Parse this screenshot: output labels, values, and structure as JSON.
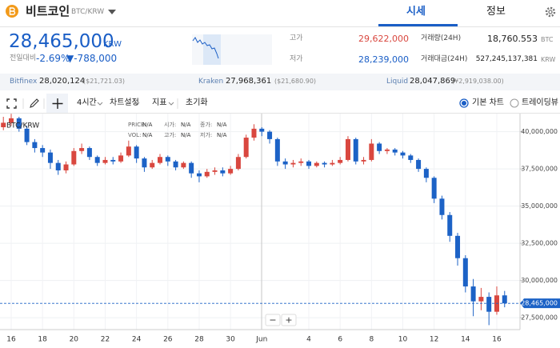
{
  "header": {
    "coin": "비트코인",
    "pair": "BTC/KRW",
    "tabs": [
      "시세",
      "정보"
    ]
  },
  "price": {
    "current": "28,465,000",
    "unit": "KRW",
    "change_label": "전일대비",
    "change_rate": "-2.69%",
    "change_amount": "▼-788,000",
    "high_label": "고가",
    "high": "29,622,000",
    "low_label": "저가",
    "low": "28,239,000",
    "volume_label": "거래량(24H)",
    "volume": "18,760.553",
    "volume_unit": "BTC",
    "amount_label": "거래대금(24H)",
    "amount": "527,245,137,381",
    "amount_unit": "KRW"
  },
  "exchanges": [
    {
      "name": "Bitfinex",
      "price": "28,020,124",
      "converted": "($21,721.03)"
    },
    {
      "name": "Kraken",
      "price": "27,968,361",
      "converted": "($21,680.90)"
    },
    {
      "name": "Liquid",
      "price": "28,047,869",
      "converted": "(¥2,919,038.00)"
    }
  ],
  "toolbar": {
    "interval": "4시간",
    "settings": "차트설정",
    "indicators": "지표",
    "reset": "초기화",
    "chart_options": [
      "기본 차트",
      "트레이딩뷰"
    ]
  },
  "chart_data": {
    "type": "candlestick",
    "symbol": "BTC/KRW",
    "legend": [
      [
        "PRICE:",
        "N/A",
        "시가:",
        "N/A",
        "종가:",
        "N/A"
      ],
      [
        "VOL:",
        "N/A",
        "고가:",
        "N/A",
        "저가:",
        "N/A"
      ]
    ],
    "categories": [
      null,
      "16",
      null,
      null,
      null,
      "18",
      null,
      null,
      null,
      "20",
      null,
      null,
      null,
      "22",
      null,
      null,
      null,
      "24",
      null,
      null,
      null,
      "26",
      null,
      null,
      null,
      "28",
      null,
      null,
      null,
      "30",
      null,
      null,
      null,
      "Jun",
      null,
      null,
      null,
      null,
      null,
      "4",
      null,
      null,
      null,
      "6",
      null,
      null,
      null,
      "8",
      null,
      null,
      null,
      "10",
      null,
      null,
      null,
      "12",
      null,
      null,
      null,
      "14",
      null,
      null,
      null,
      "16",
      null
    ],
    "open": [
      40300000,
      40600000,
      40900000,
      40200000,
      39300000,
      38900000,
      38600000,
      37900000,
      37400000,
      37800000,
      38700000,
      38900000,
      38300000,
      37900000,
      38100000,
      38000000,
      38400000,
      39000000,
      38200000,
      37600000,
      37900000,
      38300000,
      38000000,
      37600000,
      37900000,
      37200000,
      37000000,
      37300000,
      37400000,
      37200000,
      37500000,
      38300000,
      39600000,
      40200000,
      40000000,
      39500000,
      38000000,
      37800000,
      37900000,
      38000000,
      37700000,
      37900000,
      37800000,
      37900000,
      38100000,
      39500000,
      38000000,
      38100000,
      39200000,
      38700000,
      38800000,
      38600000,
      38400000,
      38100000,
      37500000,
      36900000,
      35500000,
      34400000,
      33000000,
      31500000,
      29600000,
      28600000,
      28900000,
      27900000,
      29000000
    ],
    "high": [
      41000000,
      41200000,
      41000000,
      40400000,
      39500000,
      39100000,
      38800000,
      38100000,
      38000000,
      38900000,
      39200000,
      39000000,
      38400000,
      38300000,
      38300000,
      38600000,
      39400000,
      39100000,
      38300000,
      38100000,
      38500000,
      38400000,
      38100000,
      38000000,
      38000000,
      37400000,
      37500000,
      37600000,
      37600000,
      37700000,
      38500000,
      39800000,
      40500000,
      40300000,
      40100000,
      39600000,
      38200000,
      38100000,
      38200000,
      38100000,
      38000000,
      38000000,
      38100000,
      38300000,
      39700000,
      39600000,
      38300000,
      39500000,
      39300000,
      38900000,
      38900000,
      38700000,
      38500000,
      38200000,
      37600000,
      37000000,
      35700000,
      34600000,
      33200000,
      31700000,
      30100000,
      29500000,
      29200000,
      29600000,
      29300000
    ],
    "low": [
      40100000,
      40400000,
      40000000,
      39100000,
      38600000,
      38300000,
      37500000,
      37100000,
      37200000,
      37700000,
      38500000,
      38100000,
      37700000,
      37800000,
      37800000,
      37900000,
      38300000,
      37900000,
      37300000,
      37500000,
      37800000,
      37700000,
      37400000,
      37500000,
      36900000,
      36600000,
      36900000,
      37100000,
      37000000,
      37100000,
      37400000,
      38200000,
      39400000,
      39700000,
      39200000,
      37700000,
      37500000,
      37600000,
      37700000,
      37500000,
      37600000,
      37600000,
      37700000,
      37800000,
      38000000,
      37800000,
      37800000,
      38000000,
      38500000,
      38500000,
      38400000,
      38200000,
      37900000,
      37300000,
      36600000,
      35200000,
      34100000,
      32600000,
      31000000,
      29200000,
      27600000,
      28000000,
      27000000,
      27700000,
      28200000
    ],
    "close": [
      40600000,
      40900000,
      40200000,
      39300000,
      38900000,
      38600000,
      37900000,
      37400000,
      37800000,
      38700000,
      38900000,
      38300000,
      37900000,
      38100000,
      38000000,
      38400000,
      39000000,
      38200000,
      37600000,
      37900000,
      38300000,
      38000000,
      37600000,
      37900000,
      37200000,
      37000000,
      37300000,
      37400000,
      37200000,
      37500000,
      38300000,
      39600000,
      40200000,
      40000000,
      39500000,
      38000000,
      37800000,
      37900000,
      38000000,
      37700000,
      37900000,
      37800000,
      37900000,
      38100000,
      39500000,
      38000000,
      38100000,
      39200000,
      38700000,
      38800000,
      38600000,
      38400000,
      38100000,
      37500000,
      36900000,
      35500000,
      34400000,
      33000000,
      31500000,
      29600000,
      28600000,
      28900000,
      27900000,
      29000000,
      28465000
    ],
    "up_color": "#d9473f",
    "down_color": "#1c62c6",
    "ylim": [
      26700000,
      41000000
    ],
    "yticks": [
      {
        "value": 27500000,
        "label": "27,500,000"
      },
      {
        "value": 30000000,
        "label": "30,000,000"
      },
      {
        "value": 32500000,
        "label": "32,500,000"
      },
      {
        "value": 35000000,
        "label": "35,000,000"
      },
      {
        "value": 37500000,
        "label": "37,500,000"
      },
      {
        "value": 40000000,
        "label": "40,000,000"
      }
    ],
    "grid": true,
    "last_price": {
      "value": 28465000,
      "label": "28,465,000"
    },
    "zoom": [
      "−",
      "+"
    ]
  }
}
